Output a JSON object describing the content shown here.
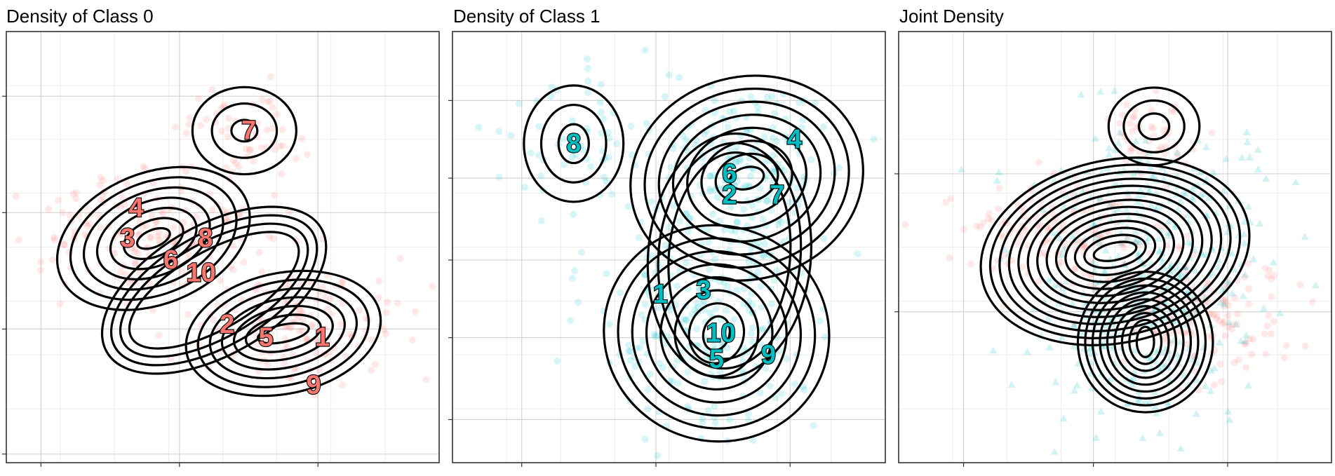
{
  "panels": [
    {
      "title": "Density of Class 0"
    },
    {
      "title": "Density of Class 1"
    },
    {
      "title": "Joint Density"
    }
  ],
  "colors": {
    "class0": "#F8766D",
    "class1": "#00BFC4",
    "contour": "#000000",
    "grid": "#e3e3e3",
    "panel_border": "#333333"
  },
  "chart_data": [
    {
      "type": "scatter",
      "title": "Density of Class 0",
      "overlay": "density contours",
      "xlabel": "",
      "ylabel": "",
      "grid": true,
      "series": [
        {
          "marker": "circle",
          "color": "#F8766D",
          "clusters": [
            {
              "center": [
                0.55,
                0.77
              ],
              "spread": [
                0.07,
                0.06
              ],
              "n": 55
            },
            {
              "center": [
                0.32,
                0.53
              ],
              "spread": [
                0.13,
                0.07
              ],
              "n": 170
            },
            {
              "center": [
                0.67,
                0.32
              ],
              "spread": [
                0.11,
                0.07
              ],
              "n": 150
            }
          ]
        }
      ],
      "contour_labels": [
        {
          "text": "7",
          "x": 0.56,
          "y": 0.77
        },
        {
          "text": "4",
          "x": 0.3,
          "y": 0.59
        },
        {
          "text": "3",
          "x": 0.28,
          "y": 0.52
        },
        {
          "text": "8",
          "x": 0.46,
          "y": 0.52
        },
        {
          "text": "6",
          "x": 0.38,
          "y": 0.47
        },
        {
          "text": "10",
          "x": 0.45,
          "y": 0.44
        },
        {
          "text": "2",
          "x": 0.51,
          "y": 0.32
        },
        {
          "text": "5",
          "x": 0.6,
          "y": 0.29
        },
        {
          "text": "1",
          "x": 0.73,
          "y": 0.29
        },
        {
          "text": "9",
          "x": 0.71,
          "y": 0.18
        }
      ]
    },
    {
      "type": "scatter",
      "title": "Density of Class 1",
      "overlay": "density contours",
      "xlabel": "",
      "ylabel": "",
      "grid": true,
      "series": [
        {
          "marker": "circle",
          "color": "#00BFC4",
          "clusters": [
            {
              "center": [
                0.28,
                0.74
              ],
              "spread": [
                0.1,
                0.09
              ],
              "n": 60
            },
            {
              "center": [
                0.68,
                0.66
              ],
              "spread": [
                0.1,
                0.11
              ],
              "n": 210
            },
            {
              "center": [
                0.58,
                0.33
              ],
              "spread": [
                0.12,
                0.12
              ],
              "n": 230
            }
          ]
        }
      ],
      "contour_labels": [
        {
          "text": "8",
          "x": 0.28,
          "y": 0.74
        },
        {
          "text": "4",
          "x": 0.79,
          "y": 0.75
        },
        {
          "text": "6",
          "x": 0.64,
          "y": 0.67
        },
        {
          "text": "2",
          "x": 0.64,
          "y": 0.62
        },
        {
          "text": "7",
          "x": 0.75,
          "y": 0.62
        },
        {
          "text": "1",
          "x": 0.48,
          "y": 0.39
        },
        {
          "text": "3",
          "x": 0.58,
          "y": 0.4
        },
        {
          "text": "10",
          "x": 0.62,
          "y": 0.3
        },
        {
          "text": "5",
          "x": 0.61,
          "y": 0.24
        },
        {
          "text": "9",
          "x": 0.73,
          "y": 0.25
        }
      ]
    },
    {
      "type": "scatter",
      "title": "Joint Density",
      "overlay": "density contours",
      "xlabel": "",
      "ylabel": "",
      "grid": true,
      "series": [
        {
          "marker": "circle",
          "color": "#F8766D",
          "clusters": [
            {
              "center": [
                0.59,
                0.77
              ],
              "spread": [
                0.06,
                0.05
              ],
              "n": 45
            },
            {
              "center": [
                0.38,
                0.54
              ],
              "spread": [
                0.12,
                0.06
              ],
              "n": 150
            },
            {
              "center": [
                0.7,
                0.34
              ],
              "spread": [
                0.1,
                0.07
              ],
              "n": 130
            }
          ]
        },
        {
          "marker": "triangle",
          "color": "#00BFC4",
          "clusters": [
            {
              "center": [
                0.6,
                0.52
              ],
              "spread": [
                0.15,
                0.12
              ],
              "n": 260
            },
            {
              "center": [
                0.56,
                0.3
              ],
              "spread": [
                0.11,
                0.11
              ],
              "n": 200
            }
          ]
        }
      ],
      "contour_labels": []
    }
  ]
}
